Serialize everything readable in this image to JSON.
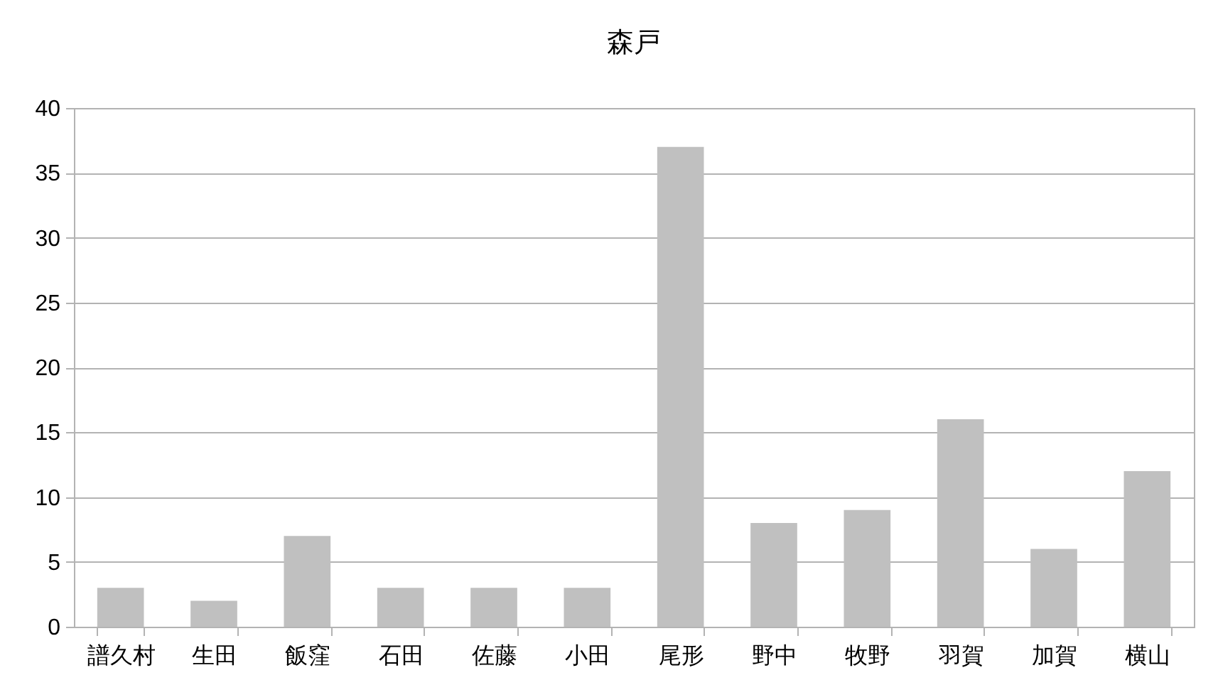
{
  "chart_data": {
    "type": "bar",
    "title": "森戸",
    "categories": [
      "譜久村",
      "生田",
      "飯窪",
      "石田",
      "佐藤",
      "小田",
      "尾形",
      "野中",
      "牧野",
      "羽賀",
      "加賀",
      "横山"
    ],
    "values": [
      3,
      2,
      7,
      3,
      3,
      3,
      37,
      8,
      9,
      16,
      6,
      12
    ],
    "color": "#c0c0c0",
    "ylim": [
      0,
      40
    ],
    "yticks": [
      0,
      5,
      10,
      15,
      20,
      25,
      30,
      35,
      40
    ],
    "grid": "y"
  }
}
